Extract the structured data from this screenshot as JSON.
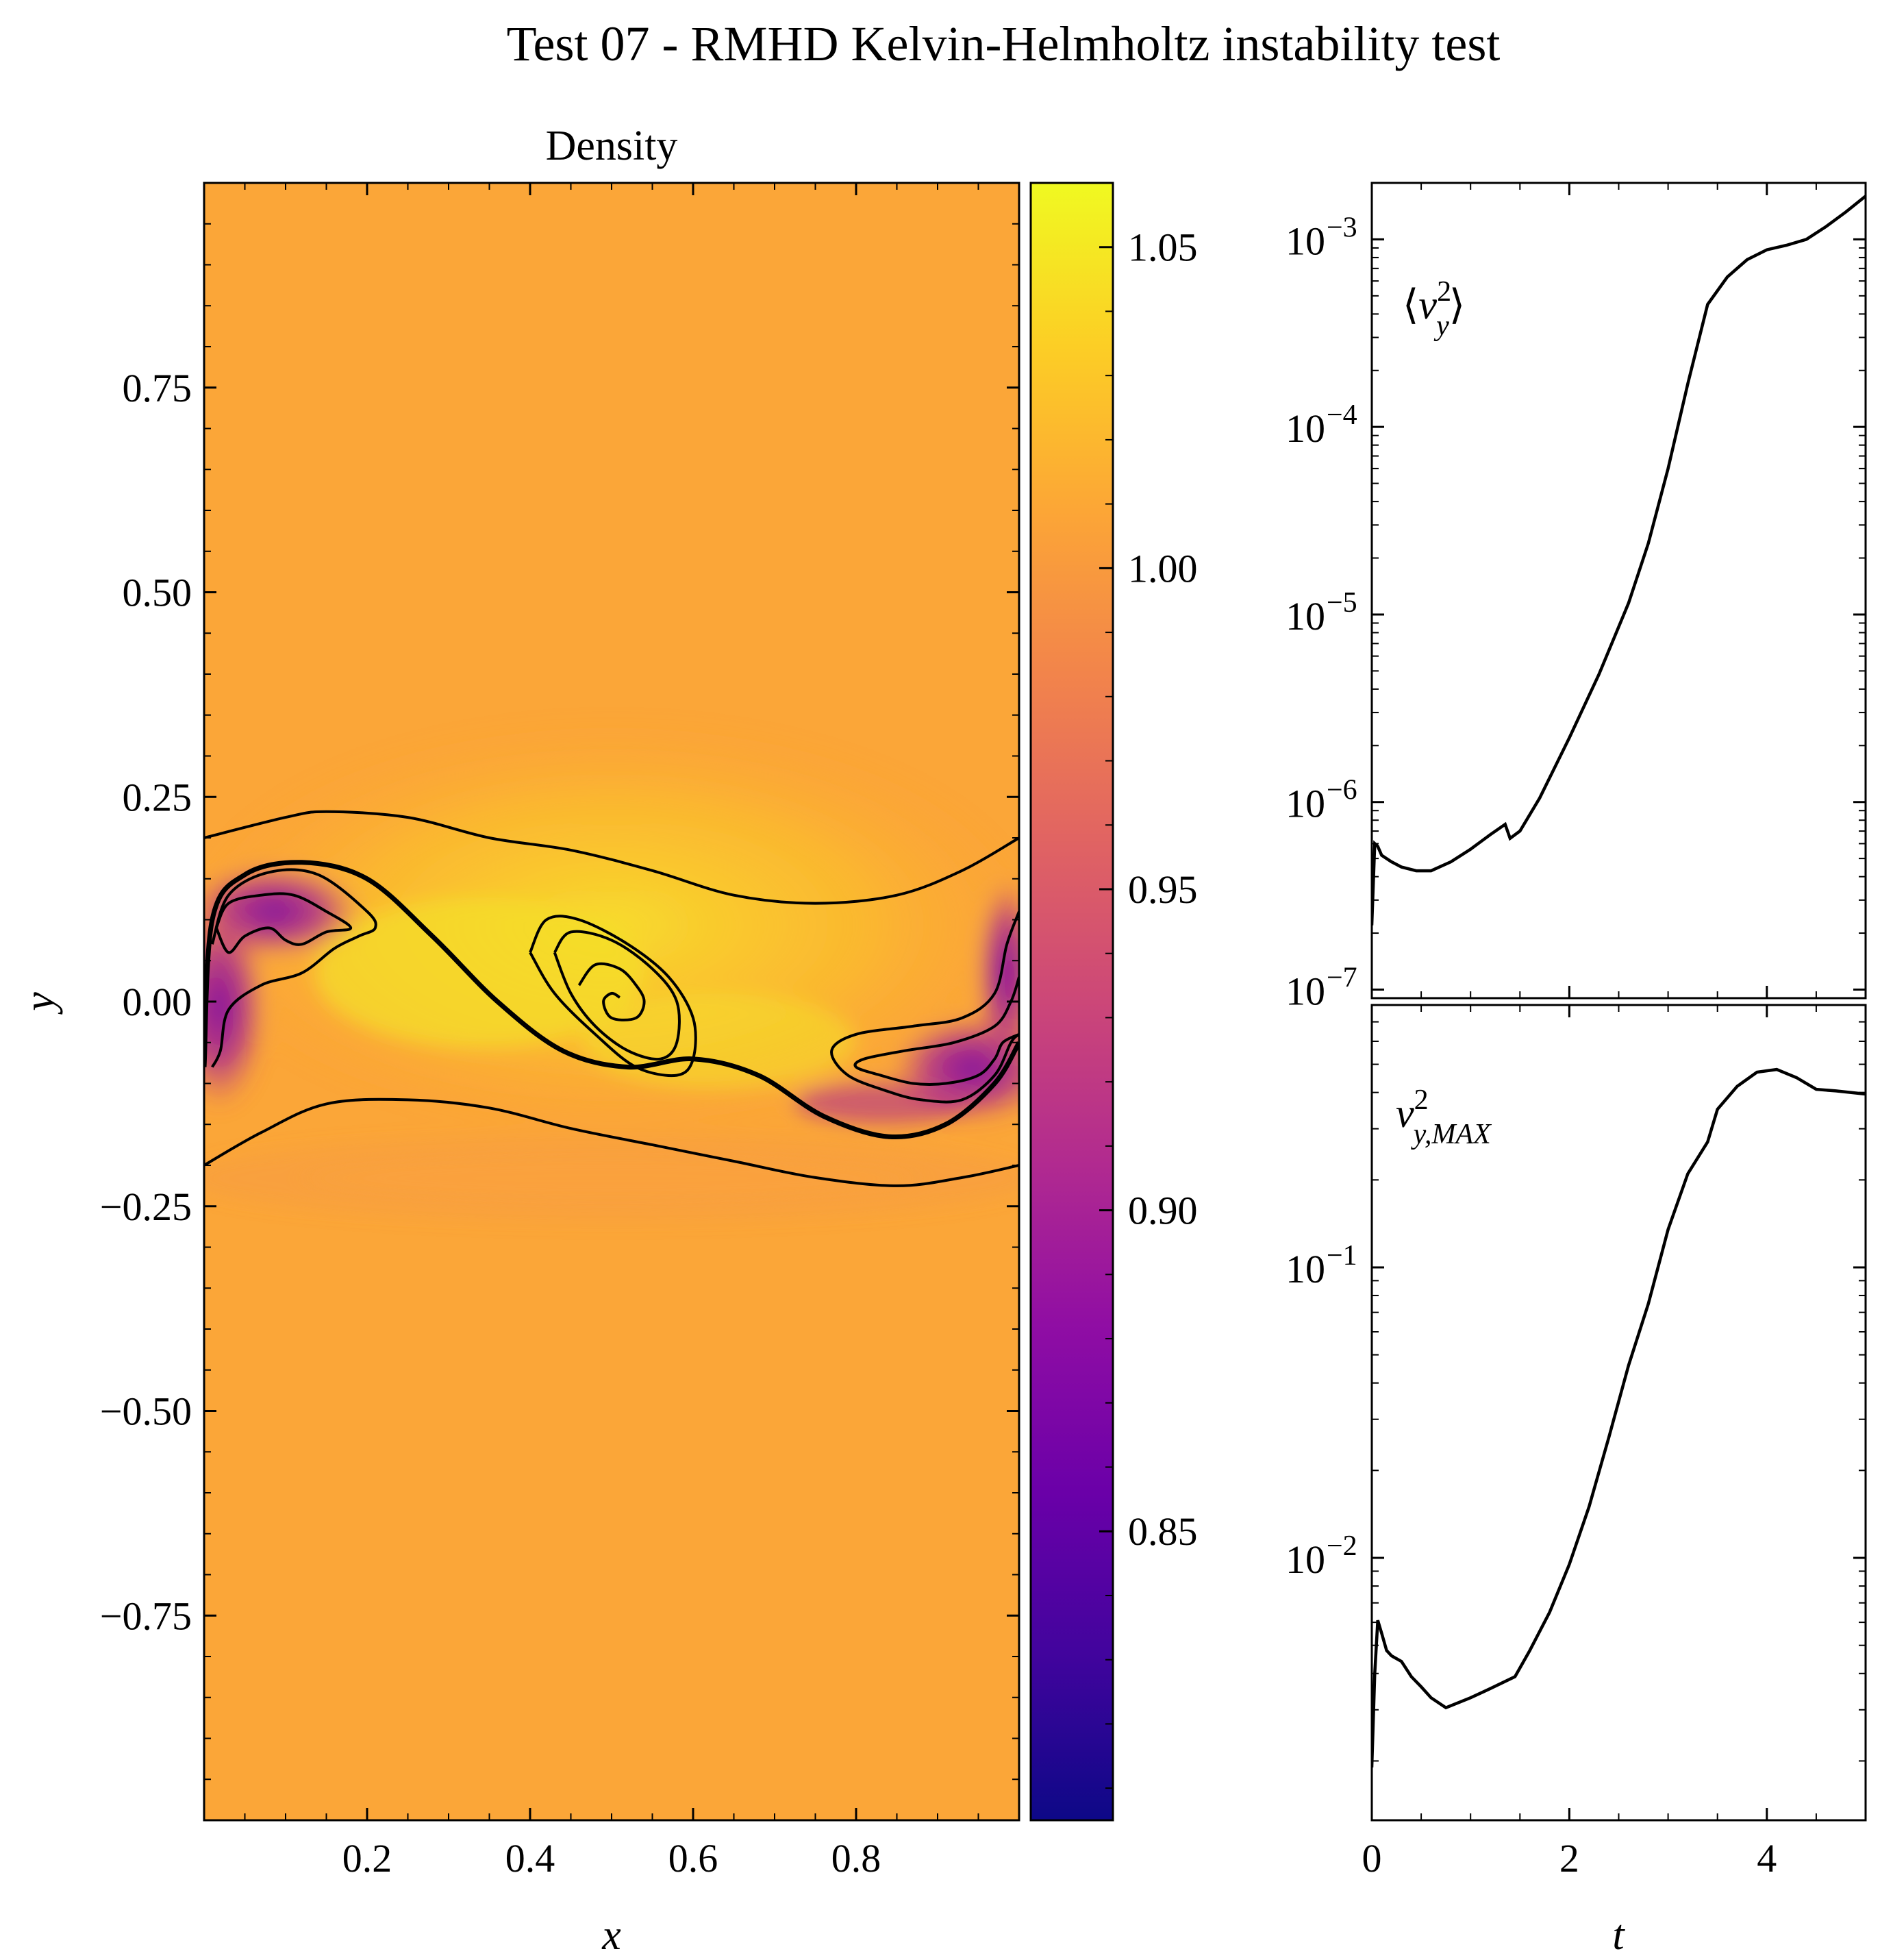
{
  "figure": {
    "suptitle": "Test 07 - RMHD Kelvin-Helmholtz instability test"
  },
  "chart_data": [
    {
      "type": "heatmap",
      "title": "Density",
      "xlabel": "x",
      "ylabel": "y",
      "xlim": [
        0,
        1
      ],
      "ylim": [
        -1,
        1
      ],
      "xticks": [
        0.2,
        0.4,
        0.6,
        0.8
      ],
      "xtick_labels": [
        "0.2",
        "0.4",
        "0.6",
        "0.8"
      ],
      "yticks": [
        0.75,
        0.5,
        0.25,
        0.0,
        -0.25,
        -0.5,
        -0.75
      ],
      "ytick_labels": [
        "0.75",
        "0.50",
        "0.25",
        "0.00",
        "−0.25",
        "−0.50",
        "−0.75"
      ],
      "colormap": "plasma",
      "background_value": 0.985,
      "colorbar": {
        "vmin": 0.805,
        "vmax": 1.06,
        "ticks": [
          1.05,
          1.0,
          0.95,
          0.9,
          0.85
        ],
        "tick_labels": [
          "1.05",
          "1.00",
          "0.95",
          "0.90",
          "0.85"
        ]
      },
      "contours": [
        {
          "name": "outer-upper",
          "points": [
            [
              0.0,
              0.2
            ],
            [
              0.1,
              0.225
            ],
            [
              0.15,
              0.232
            ],
            [
              0.25,
              0.225
            ],
            [
              0.35,
              0.2
            ],
            [
              0.45,
              0.185
            ],
            [
              0.55,
              0.16
            ],
            [
              0.65,
              0.13
            ],
            [
              0.75,
              0.12
            ],
            [
              0.85,
              0.13
            ],
            [
              0.93,
              0.16
            ],
            [
              1.0,
              0.2
            ]
          ]
        },
        {
          "name": "outer-lower",
          "points": [
            [
              0.0,
              -0.2
            ],
            [
              0.07,
              -0.16
            ],
            [
              0.15,
              -0.125
            ],
            [
              0.25,
              -0.12
            ],
            [
              0.35,
              -0.13
            ],
            [
              0.45,
              -0.155
            ],
            [
              0.55,
              -0.175
            ],
            [
              0.65,
              -0.195
            ],
            [
              0.75,
              -0.215
            ],
            [
              0.85,
              -0.225
            ],
            [
              0.93,
              -0.215
            ],
            [
              1.0,
              -0.2
            ]
          ]
        },
        {
          "name": "shear-layer",
          "points": [
            [
              0.0,
              -0.08
            ],
            [
              0.01,
              0.1
            ],
            [
              0.05,
              0.155
            ],
            [
              0.12,
              0.17
            ],
            [
              0.2,
              0.15
            ],
            [
              0.28,
              0.08
            ],
            [
              0.36,
              0.0
            ],
            [
              0.44,
              -0.06
            ],
            [
              0.52,
              -0.08
            ],
            [
              0.6,
              -0.07
            ],
            [
              0.68,
              -0.09
            ],
            [
              0.76,
              -0.14
            ],
            [
              0.84,
              -0.165
            ],
            [
              0.91,
              -0.15
            ],
            [
              0.97,
              -0.1
            ],
            [
              1.0,
              -0.05
            ]
          ]
        },
        {
          "name": "left-vortex-outer",
          "points": [
            [
              0.01,
              0.07
            ],
            [
              0.03,
              0.13
            ],
            [
              0.08,
              0.158
            ],
            [
              0.14,
              0.155
            ],
            [
              0.2,
              0.11
            ],
            [
              0.21,
              0.09
            ],
            [
              0.19,
              0.08
            ],
            [
              0.16,
              0.065
            ],
            [
              0.12,
              0.035
            ],
            [
              0.07,
              0.02
            ],
            [
              0.03,
              -0.01
            ],
            [
              0.02,
              -0.06
            ],
            [
              0.01,
              -0.08
            ]
          ]
        },
        {
          "name": "left-vortex-inner",
          "points": [
            [
              0.015,
              0.09
            ],
            [
              0.03,
              0.12
            ],
            [
              0.07,
              0.13
            ],
            [
              0.11,
              0.13
            ],
            [
              0.15,
              0.11
            ],
            [
              0.18,
              0.09
            ],
            [
              0.15,
              0.085
            ],
            [
              0.12,
              0.07
            ],
            [
              0.1,
              0.075
            ],
            [
              0.08,
              0.09
            ],
            [
              0.05,
              0.08
            ],
            [
              0.03,
              0.06
            ],
            [
              0.015,
              0.09
            ]
          ]
        },
        {
          "name": "center-vortex-outer",
          "points": [
            [
              0.4,
              0.06
            ],
            [
              0.42,
              0.1
            ],
            [
              0.46,
              0.1
            ],
            [
              0.52,
              0.07
            ],
            [
              0.57,
              0.03
            ],
            [
              0.6,
              -0.02
            ],
            [
              0.6,
              -0.07
            ],
            [
              0.58,
              -0.09
            ],
            [
              0.53,
              -0.08
            ],
            [
              0.48,
              -0.04
            ],
            [
              0.43,
              0.01
            ],
            [
              0.4,
              0.06
            ]
          ]
        },
        {
          "name": "center-vortex-middle",
          "points": [
            [
              0.43,
              0.06
            ],
            [
              0.45,
              0.085
            ],
            [
              0.5,
              0.075
            ],
            [
              0.55,
              0.04
            ],
            [
              0.58,
              0.0
            ],
            [
              0.58,
              -0.05
            ],
            [
              0.56,
              -0.07
            ],
            [
              0.52,
              -0.06
            ],
            [
              0.48,
              -0.03
            ],
            [
              0.45,
              0.01
            ],
            [
              0.43,
              0.06
            ]
          ]
        },
        {
          "name": "center-vortex-inner",
          "points": [
            [
              0.46,
              0.02
            ],
            [
              0.48,
              0.045
            ],
            [
              0.51,
              0.04
            ],
            [
              0.53,
              0.02
            ],
            [
              0.54,
              -0.0
            ],
            [
              0.53,
              -0.02
            ],
            [
              0.5,
              -0.02
            ],
            [
              0.49,
              0.0
            ],
            [
              0.5,
              0.01
            ],
            [
              0.51,
              0.005
            ]
          ]
        },
        {
          "name": "right-vortex-outer",
          "points": [
            [
              1.0,
              0.11
            ],
            [
              0.985,
              0.07
            ],
            [
              0.97,
              0.01
            ],
            [
              0.93,
              -0.02
            ],
            [
              0.87,
              -0.03
            ],
            [
              0.8,
              -0.04
            ],
            [
              0.77,
              -0.06
            ],
            [
              0.79,
              -0.09
            ],
            [
              0.84,
              -0.11
            ],
            [
              0.88,
              -0.12
            ],
            [
              0.93,
              -0.12
            ],
            [
              0.97,
              -0.09
            ],
            [
              0.99,
              -0.05
            ],
            [
              1.0,
              -0.04
            ]
          ]
        },
        {
          "name": "right-vortex-inner",
          "points": [
            [
              1.0,
              0.03
            ],
            [
              0.99,
              0.0
            ],
            [
              0.97,
              -0.03
            ],
            [
              0.92,
              -0.05
            ],
            [
              0.86,
              -0.06
            ],
            [
              0.81,
              -0.07
            ],
            [
              0.8,
              -0.08
            ],
            [
              0.83,
              -0.09
            ],
            [
              0.87,
              -0.1
            ],
            [
              0.91,
              -0.1
            ],
            [
              0.95,
              -0.09
            ],
            [
              0.97,
              -0.07
            ],
            [
              0.98,
              -0.05
            ],
            [
              1.0,
              -0.04
            ]
          ]
        }
      ]
    },
    {
      "type": "line",
      "yscale": "log",
      "annotation": "⟨v_y²⟩",
      "xlim": [
        0,
        5
      ],
      "ylim": [
        9e-08,
        0.002
      ],
      "yticks": [
        1e-07,
        1e-06,
        1e-05,
        0.0001,
        0.001
      ],
      "ytick_labels": [
        {
          "base": "10",
          "exp": "−7"
        },
        {
          "base": "10",
          "exp": "−6"
        },
        {
          "base": "10",
          "exp": "−5"
        },
        {
          "base": "10",
          "exp": "−4"
        },
        {
          "base": "10",
          "exp": "−3"
        }
      ],
      "series": [
        {
          "x": [
            0.0,
            0.03,
            0.06,
            0.1,
            0.2,
            0.3,
            0.45,
            0.6,
            0.8,
            1.0,
            1.2,
            1.35,
            1.4,
            1.5,
            1.7,
            2.0,
            2.3,
            2.6,
            2.8,
            3.0,
            3.2,
            3.4,
            3.6,
            3.8,
            4.0,
            4.2,
            4.4,
            4.6,
            4.8,
            5.0
          ],
          "y": [
            2.2e-07,
            6e-07,
            5.8e-07,
            5.2e-07,
            4.8e-07,
            4.5e-07,
            4.3e-07,
            4.3e-07,
            4.8e-07,
            5.6e-07,
            6.7e-07,
            7.6e-07,
            6.4e-07,
            7e-07,
            1.05e-06,
            2.2e-06,
            4.8e-06,
            1.15e-05,
            2.4e-05,
            6e-05,
            0.00017,
            0.00045,
            0.00063,
            0.00078,
            0.00088,
            0.00093,
            0.001,
            0.00117,
            0.0014,
            0.0017
          ]
        }
      ]
    },
    {
      "type": "line",
      "yscale": "log",
      "annotation": "v_{y,MAX}²",
      "xlabel": "t",
      "xlim": [
        0,
        5
      ],
      "ylim": [
        0.00125,
        0.8
      ],
      "xticks": [
        0,
        2,
        4
      ],
      "xtick_labels": [
        "0",
        "2",
        "4"
      ],
      "yticks": [
        0.01,
        0.1
      ],
      "ytick_labels": [
        {
          "base": "10",
          "exp": "−2"
        },
        {
          "base": "10",
          "exp": "−1"
        }
      ],
      "series": [
        {
          "x": [
            0.0,
            0.03,
            0.06,
            0.1,
            0.15,
            0.2,
            0.3,
            0.4,
            0.5,
            0.6,
            0.75,
            1.0,
            1.2,
            1.45,
            1.6,
            1.8,
            2.0,
            2.2,
            2.4,
            2.6,
            2.8,
            3.0,
            3.2,
            3.4,
            3.5,
            3.7,
            3.9,
            4.1,
            4.3,
            4.5,
            4.7,
            5.0
          ],
          "y": [
            0.0019,
            0.004,
            0.0061,
            0.0055,
            0.0048,
            0.0046,
            0.0044,
            0.0039,
            0.0036,
            0.0033,
            0.00305,
            0.0033,
            0.00355,
            0.0039,
            0.0048,
            0.0065,
            0.0095,
            0.015,
            0.026,
            0.046,
            0.075,
            0.135,
            0.21,
            0.27,
            0.35,
            0.42,
            0.47,
            0.48,
            0.45,
            0.41,
            0.405,
            0.395
          ]
        }
      ]
    }
  ]
}
